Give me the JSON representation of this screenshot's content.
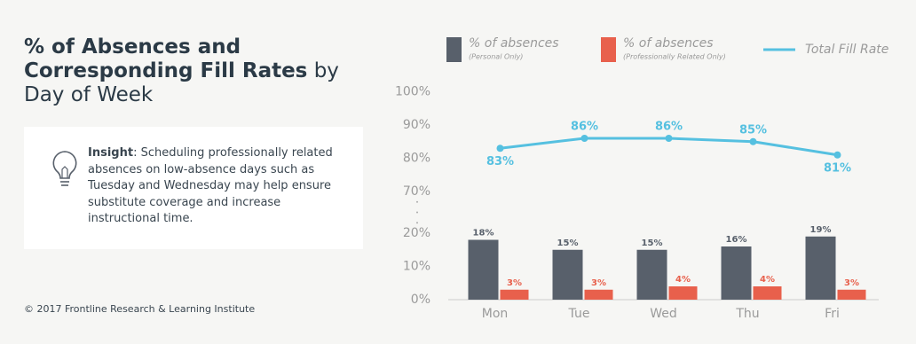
{
  "title_bold": "% of Absences and Corresponding Fill Rates",
  "title_rest": "by Day of Week",
  "insight": {
    "label": "Insight",
    "text": ": Scheduling professionally related absences on low-absence days such as Tuesday and Wednesday may help ensure substitute coverage and increase instructional time."
  },
  "footer": "© 2017 Frontline Research & Learning Institute",
  "chart_data": {
    "type": "bar",
    "categories": [
      "Mon",
      "Tue",
      "Wed",
      "Thu",
      "Fri"
    ],
    "series": [
      {
        "name": "% of absences",
        "note": "(Personal Only)",
        "type": "bar",
        "color": "#58606b",
        "values": [
          18,
          15,
          15,
          16,
          19
        ],
        "value_labels": [
          "18%",
          "15%",
          "15%",
          "16%",
          "19%"
        ]
      },
      {
        "name": "% of absences",
        "note": "(Professionally Related Only)",
        "type": "bar",
        "color": "#e8604c",
        "values": [
          3,
          3,
          4,
          4,
          3
        ],
        "value_labels": [
          "3%",
          "3%",
          "4%",
          "4%",
          "3%"
        ]
      },
      {
        "name": "Total Fill Rate",
        "type": "line",
        "color": "#55c0e0",
        "values": [
          83,
          86,
          86,
          85,
          81
        ],
        "value_labels": [
          "83%",
          "86%",
          "86%",
          "85%",
          "81%"
        ]
      }
    ],
    "ylim": [
      0,
      100
    ],
    "yticks": [
      {
        "value": 0,
        "label": "0%"
      },
      {
        "value": 10,
        "label": "10%"
      },
      {
        "value": 20,
        "label": "20%"
      },
      {
        "value": 70,
        "label": "70%"
      },
      {
        "value": 80,
        "label": "80%"
      },
      {
        "value": 90,
        "label": "90%"
      },
      {
        "value": 100,
        "label": "100%"
      }
    ],
    "grid": false
  }
}
